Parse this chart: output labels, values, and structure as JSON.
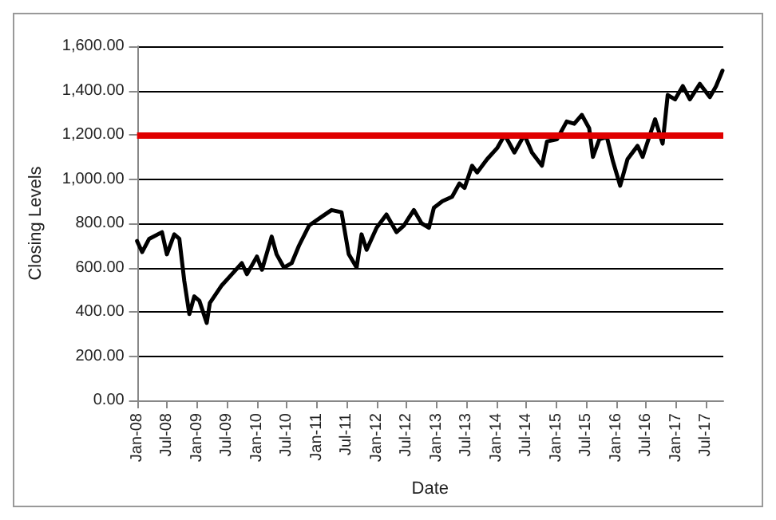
{
  "chart_data": {
    "type": "line",
    "xlabel": "Date",
    "ylabel": "Closing Levels",
    "x": [
      "2008-01-01",
      "2008-02-01",
      "2008-03-15",
      "2008-06-01",
      "2008-07-01",
      "2008-08-15",
      "2008-09-15",
      "2008-10-15",
      "2008-11-15",
      "2008-12-15",
      "2009-01-15",
      "2009-03-01",
      "2009-03-20",
      "2009-06-01",
      "2009-08-01",
      "2009-10-01",
      "2009-11-01",
      "2010-01-01",
      "2010-02-01",
      "2010-04-01",
      "2010-05-01",
      "2010-06-15",
      "2010-08-01",
      "2010-09-15",
      "2010-11-15",
      "2011-02-01",
      "2011-04-01",
      "2011-06-01",
      "2011-07-15",
      "2011-09-01",
      "2011-10-01",
      "2011-11-01",
      "2012-01-01",
      "2012-03-01",
      "2012-05-01",
      "2012-06-15",
      "2012-08-15",
      "2012-10-01",
      "2012-11-15",
      "2012-12-15",
      "2013-02-05",
      "2013-04-05",
      "2013-05-20",
      "2013-06-20",
      "2013-08-05",
      "2013-09-05",
      "2013-11-05",
      "2014-01-05",
      "2014-02-20",
      "2014-04-20",
      "2014-06-20",
      "2014-08-05",
      "2014-10-05",
      "2014-11-05",
      "2015-01-05",
      "2015-03-05",
      "2015-04-20",
      "2015-06-05",
      "2015-07-20",
      "2015-08-12",
      "2015-09-20",
      "2015-11-05",
      "2015-12-12",
      "2016-01-25",
      "2016-03-10",
      "2016-05-10",
      "2016-06-10",
      "2016-08-25",
      "2016-10-10",
      "2016-11-10",
      "2016-12-25",
      "2017-02-10",
      "2017-03-25",
      "2017-05-25",
      "2017-07-25",
      "2017-09-01",
      "2017-10-10"
    ],
    "series": [
      {
        "color": "#000000",
        "values": [
          720,
          670,
          730,
          760,
          660,
          750,
          730,
          540,
          390,
          470,
          450,
          350,
          440,
          520,
          570,
          620,
          570,
          650,
          590,
          740,
          660,
          600,
          620,
          700,
          790,
          830,
          860,
          850,
          660,
          600,
          750,
          680,
          780,
          840,
          760,
          790,
          860,
          800,
          780,
          870,
          900,
          920,
          980,
          960,
          1060,
          1030,
          1090,
          1140,
          1200,
          1120,
          1200,
          1120,
          1060,
          1170,
          1180,
          1260,
          1250,
          1290,
          1230,
          1100,
          1180,
          1190,
          1080,
          970,
          1090,
          1150,
          1100,
          1270,
          1160,
          1380,
          1360,
          1420,
          1360,
          1430,
          1370,
          1420,
          1490
        ]
      }
    ],
    "xlim": [
      "2008-01-01",
      "2017-10-15"
    ],
    "xticks": [
      {
        "value": "2008-01-01",
        "label": "Jan-08"
      },
      {
        "value": "2008-07-01",
        "label": "Jul-08"
      },
      {
        "value": "2009-01-01",
        "label": "Jan-09"
      },
      {
        "value": "2009-07-01",
        "label": "Jul-09"
      },
      {
        "value": "2010-01-01",
        "label": "Jan-10"
      },
      {
        "value": "2010-07-01",
        "label": "Jul-10"
      },
      {
        "value": "2011-01-01",
        "label": "Jan-11"
      },
      {
        "value": "2011-07-01",
        "label": "Jul-11"
      },
      {
        "value": "2012-01-01",
        "label": "Jan-12"
      },
      {
        "value": "2012-07-01",
        "label": "Jul-12"
      },
      {
        "value": "2013-01-01",
        "label": "Jan-13"
      },
      {
        "value": "2013-07-01",
        "label": "Jul-13"
      },
      {
        "value": "2014-01-01",
        "label": "Jan-14"
      },
      {
        "value": "2014-07-01",
        "label": "Jul-14"
      },
      {
        "value": "2015-01-01",
        "label": "Jan-15"
      },
      {
        "value": "2015-07-01",
        "label": "Jul-15"
      },
      {
        "value": "2016-01-01",
        "label": "Jan-16"
      },
      {
        "value": "2016-07-01",
        "label": "Jul-16"
      },
      {
        "value": "2017-01-01",
        "label": "Jan-17"
      },
      {
        "value": "2017-07-01",
        "label": "Jul-17"
      }
    ],
    "ylim": [
      0,
      1600
    ],
    "yticks": [
      {
        "value": 0,
        "label": "0.00"
      },
      {
        "value": 200,
        "label": "200.00"
      },
      {
        "value": 400,
        "label": "400.00"
      },
      {
        "value": 600,
        "label": "600.00"
      },
      {
        "value": 800,
        "label": "800.00"
      },
      {
        "value": 1000,
        "label": "1,000.00"
      },
      {
        "value": 1200,
        "label": "1,200.00"
      },
      {
        "value": 1400,
        "label": "1,400.00"
      },
      {
        "value": 1600,
        "label": "1,600.00"
      }
    ],
    "ref_lines": [
      {
        "axis": "y",
        "value": 1200,
        "color": "#e00000"
      }
    ],
    "grid": "y",
    "marker": "none",
    "line_style": "solid"
  }
}
